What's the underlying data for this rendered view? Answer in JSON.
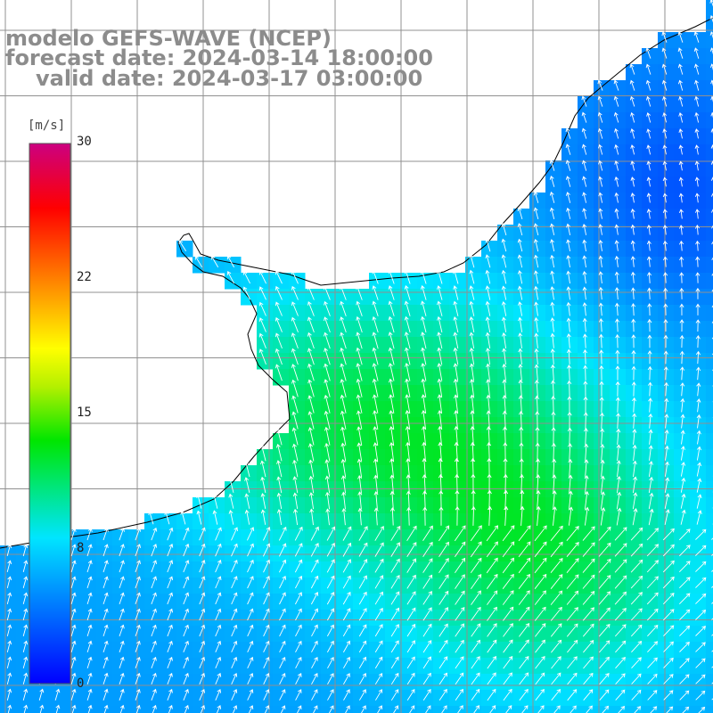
{
  "title": {
    "line1": "modelo GEFS-WAVE (NCEP)",
    "line2": "forecast date: 2024-03-14 18:00:00",
    "line3": "valid date: 2024-03-17 03:00:00"
  },
  "colorbar": {
    "unit": "[m/s]",
    "min": 0,
    "max": 30,
    "ticks": [
      {
        "label": "30",
        "value": 30
      },
      {
        "label": "22",
        "value": 22
      },
      {
        "label": "15",
        "value": 15
      },
      {
        "label": "8",
        "value": 8
      },
      {
        "label": "0",
        "value": 0
      }
    ],
    "colors": [
      "#0000ff",
      "#00e5ff",
      "#00e600",
      "#ffff00",
      "#ff7f00",
      "#ff0000",
      "#cc0080"
    ]
  },
  "map": {
    "variable": "surface wind speed and direction",
    "land_color": "#ffffff",
    "coastline_color": "#000000",
    "grid_color": "#909090"
  }
}
